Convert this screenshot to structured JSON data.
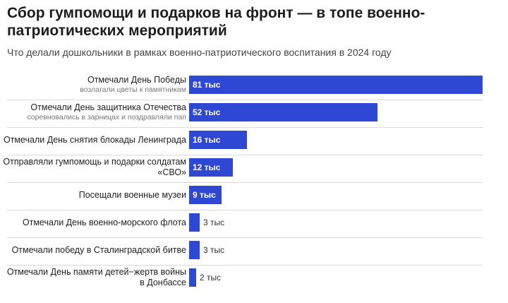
{
  "header": {
    "title": "Сбор гумпомощи и подарков на фронт — в топе военно-патриотических мероприятий",
    "subtitle": "Что делали дошкольники в рамках военно-патриотического воспитания в 2024 году"
  },
  "chart_data": {
    "type": "bar",
    "orientation": "horizontal",
    "title": "Сбор гумпомощи и подарков на фронт — в топе военно-патриотических мероприятий",
    "subtitle": "Что делали дошкольники в рамках военно-патриотического воспитания в 2024 году",
    "value_suffix": " тыс",
    "xlim": [
      0,
      81
    ],
    "grid": false,
    "bar_color": "#2f48d4",
    "categories": [
      {
        "label": "Отмечали День Победы",
        "sublabel": "возлагали цветы к памятникам",
        "value": 81
      },
      {
        "label": "Отмечали День защитника Отечества",
        "sublabel": "соревновались в зарницах и поздравляли пап",
        "value": 52
      },
      {
        "label": "Отмечали День снятия блокады Ленинграда",
        "sublabel": "",
        "value": 16
      },
      {
        "label": "Отправляли гумпомощь и подарки солдатам «СВО»",
        "sublabel": "",
        "value": 12
      },
      {
        "label": "Посещали военные музеи",
        "sublabel": "",
        "value": 9
      },
      {
        "label": "Отмечали День военно-морского флота",
        "sublabel": "",
        "value": 3
      },
      {
        "label": "Отмечали победу в Сталинградской битве",
        "sublabel": "",
        "value": 3
      },
      {
        "label": "Отмечали День памяти детей−жертв войны в Донбассе",
        "sublabel": "",
        "value": 2
      }
    ]
  }
}
